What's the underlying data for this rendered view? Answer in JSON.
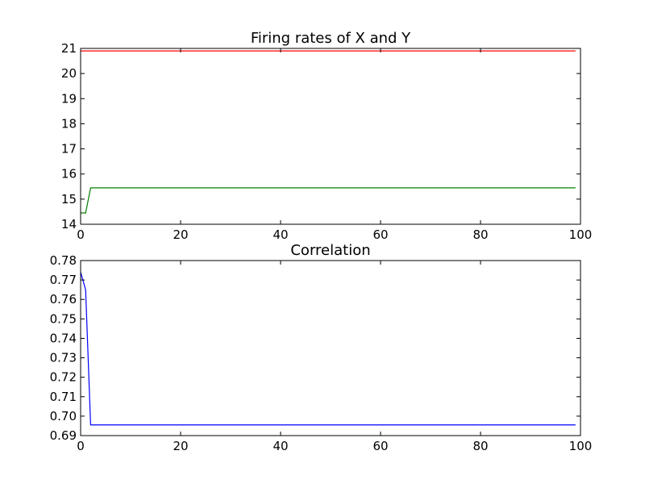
{
  "chart_data": [
    {
      "type": "line",
      "title": "Firing rates of X and Y",
      "xlabel": "",
      "ylabel": "",
      "xlim": [
        0,
        100
      ],
      "ylim": [
        14,
        21
      ],
      "xticks": [
        "0",
        "20",
        "40",
        "60",
        "80",
        "100"
      ],
      "yticks": [
        "14",
        "15",
        "16",
        "17",
        "18",
        "19",
        "20",
        "21"
      ],
      "grid": false,
      "series": [
        {
          "color": "#ff0000",
          "x": [
            0,
            99
          ],
          "y": [
            20.9,
            20.9
          ]
        },
        {
          "color": "#008000",
          "x": [
            0,
            1,
            2,
            99
          ],
          "y": [
            14.45,
            14.45,
            15.45,
            15.45
          ]
        }
      ]
    },
    {
      "type": "line",
      "title": "Correlation",
      "xlabel": "",
      "ylabel": "",
      "xlim": [
        0,
        100
      ],
      "ylim": [
        0.69,
        0.78
      ],
      "xticks": [
        "0",
        "20",
        "40",
        "60",
        "80",
        "100"
      ],
      "yticks": [
        "0.69",
        "0.70",
        "0.71",
        "0.72",
        "0.73",
        "0.74",
        "0.75",
        "0.76",
        "0.77",
        "0.78"
      ],
      "grid": false,
      "series": [
        {
          "color": "#0000ff",
          "x": [
            0,
            1,
            2,
            99
          ],
          "y": [
            0.774,
            0.765,
            0.6955,
            0.6955
          ]
        }
      ]
    }
  ]
}
